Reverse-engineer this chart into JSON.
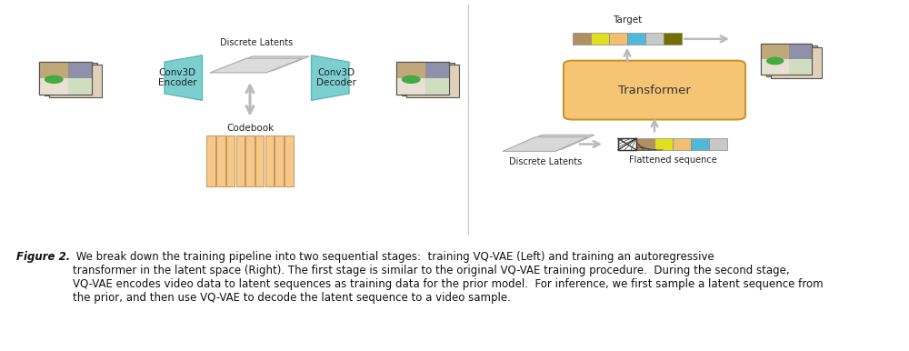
{
  "bg_color": "#ffffff",
  "fig_width": 10.0,
  "fig_height": 3.86,
  "left_panel": {
    "encoder_label": "Conv3D\nEncoder",
    "decoder_label": "Conv3D\nDecoder",
    "latents_label": "Discrete Latents",
    "codebook_label": "Codebook",
    "trapezoid_color": "#7dcfcf",
    "trapezoid_edge": "#5ab8b8",
    "codebook_color": "#f5c98a",
    "codebook_outline": "#d4a055",
    "latent_rect_color": "#dcdcdc",
    "arrow_color": "#bbbbbb",
    "n_codebook_bars": 9,
    "codebook_bar_color": "#f5c98a",
    "codebook_bar_edge": "#c8955a"
  },
  "right_panel": {
    "target_label": "Target",
    "transformer_label": "Transformer",
    "discrete_latents_label": "Discrete Latents",
    "flattened_label": "Flattened sequence",
    "transformer_color": "#f5c575",
    "transformer_edge": "#c8952a",
    "arrow_color": "#bbbbbb",
    "token_colors_target": [
      "#b09060",
      "#e0e020",
      "#f0c070",
      "#50b8d8",
      "#c8c8c8",
      "#707000"
    ],
    "token_colors_flat": [
      "#ffffff",
      "#b09060",
      "#e0e020",
      "#f0c070",
      "#50b8d8",
      "#c8c8c8"
    ],
    "latent_rect_color": "#d0d0d0"
  },
  "caption_bold": "Figure 2.",
  "caption_normal": " We break down the training pipeline into two sequential stages:  training VQ-VAE (Left) and training an autoregressive\ntransformer in the latent space (Right). The first stage is similar to the original VQ-VAE training procedure.  During the second stage,\nVQ-VAE encodes video data to latent sequences as training data for the prior model.  For inference, we first sample a latent sequence from\nthe prior, and then use VQ-VAE to decode the latent sequence to a video sample.",
  "caption_fontsize": 8.5
}
